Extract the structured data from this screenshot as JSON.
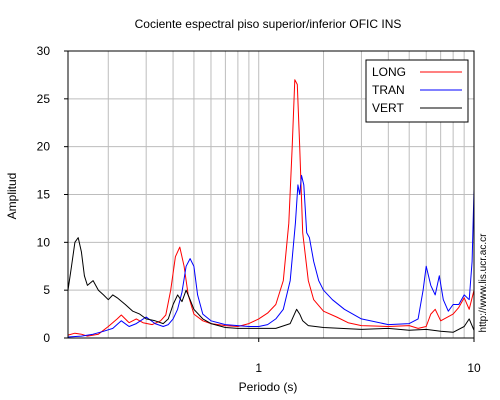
{
  "chart_data": {
    "type": "line",
    "title": "Cociente espectral piso superior/inferior  OFIC INS",
    "xlabel": "Periodo (s)",
    "ylabel": "Amplitud",
    "x_scale": "log",
    "xlim": [
      0.13,
      10
    ],
    "ylim": [
      0,
      30
    ],
    "grid": true,
    "legend_position": "top-right",
    "x_ticks": [
      {
        "value": 1,
        "label": "1"
      },
      {
        "value": 10,
        "label": "10"
      }
    ],
    "y_ticks": [
      {
        "value": 0,
        "label": "0"
      },
      {
        "value": 5,
        "label": "5"
      },
      {
        "value": 10,
        "label": "10"
      },
      {
        "value": 15,
        "label": "15"
      },
      {
        "value": 20,
        "label": "20"
      },
      {
        "value": 25,
        "label": "25"
      },
      {
        "value": 30,
        "label": "30"
      }
    ],
    "series": [
      {
        "name": "LONG",
        "color": "#ff0000",
        "points": [
          [
            0.13,
            0.3
          ],
          [
            0.14,
            0.5
          ],
          [
            0.15,
            0.4
          ],
          [
            0.16,
            0.2
          ],
          [
            0.18,
            0.4
          ],
          [
            0.2,
            1.2
          ],
          [
            0.22,
            2.0
          ],
          [
            0.23,
            2.4
          ],
          [
            0.25,
            1.6
          ],
          [
            0.27,
            2.0
          ],
          [
            0.29,
            1.6
          ],
          [
            0.32,
            1.4
          ],
          [
            0.35,
            1.8
          ],
          [
            0.37,
            2.4
          ],
          [
            0.39,
            5.0
          ],
          [
            0.41,
            8.5
          ],
          [
            0.43,
            9.5
          ],
          [
            0.45,
            7.5
          ],
          [
            0.47,
            4.5
          ],
          [
            0.5,
            2.5
          ],
          [
            0.55,
            1.8
          ],
          [
            0.6,
            1.5
          ],
          [
            0.7,
            1.3
          ],
          [
            0.8,
            1.2
          ],
          [
            0.9,
            1.5
          ],
          [
            1.0,
            2.0
          ],
          [
            1.1,
            2.6
          ],
          [
            1.2,
            3.5
          ],
          [
            1.3,
            6.0
          ],
          [
            1.38,
            12.0
          ],
          [
            1.43,
            20.0
          ],
          [
            1.47,
            27.0
          ],
          [
            1.51,
            26.5
          ],
          [
            1.55,
            20.0
          ],
          [
            1.6,
            11.0
          ],
          [
            1.7,
            6.0
          ],
          [
            1.8,
            4.0
          ],
          [
            2.0,
            2.8
          ],
          [
            2.3,
            2.2
          ],
          [
            2.6,
            1.6
          ],
          [
            3.0,
            1.3
          ],
          [
            4.0,
            1.2
          ],
          [
            5.0,
            1.3
          ],
          [
            5.5,
            1.0
          ],
          [
            6.0,
            1.2
          ],
          [
            6.3,
            2.5
          ],
          [
            6.6,
            3.0
          ],
          [
            7.0,
            1.8
          ],
          [
            8.0,
            2.5
          ],
          [
            8.5,
            3.2
          ],
          [
            9.0,
            4.2
          ],
          [
            9.5,
            3.0
          ],
          [
            10.0,
            5.0
          ]
        ]
      },
      {
        "name": "TRAN",
        "color": "#0000ff",
        "points": [
          [
            0.13,
            0.1
          ],
          [
            0.15,
            0.2
          ],
          [
            0.17,
            0.4
          ],
          [
            0.19,
            0.7
          ],
          [
            0.21,
            1.0
          ],
          [
            0.23,
            1.8
          ],
          [
            0.25,
            1.2
          ],
          [
            0.27,
            1.5
          ],
          [
            0.3,
            2.2
          ],
          [
            0.33,
            1.5
          ],
          [
            0.36,
            1.2
          ],
          [
            0.38,
            1.4
          ],
          [
            0.4,
            2.0
          ],
          [
            0.42,
            3.0
          ],
          [
            0.44,
            4.8
          ],
          [
            0.46,
            7.5
          ],
          [
            0.48,
            8.3
          ],
          [
            0.5,
            7.5
          ],
          [
            0.52,
            4.5
          ],
          [
            0.55,
            2.5
          ],
          [
            0.6,
            1.8
          ],
          [
            0.7,
            1.4
          ],
          [
            0.8,
            1.3
          ],
          [
            0.9,
            1.2
          ],
          [
            1.0,
            1.2
          ],
          [
            1.1,
            1.4
          ],
          [
            1.2,
            2.0
          ],
          [
            1.3,
            3.0
          ],
          [
            1.4,
            6.0
          ],
          [
            1.48,
            12.0
          ],
          [
            1.52,
            16.0
          ],
          [
            1.55,
            15.0
          ],
          [
            1.58,
            17.0
          ],
          [
            1.62,
            16.0
          ],
          [
            1.67,
            11.0
          ],
          [
            1.72,
            10.5
          ],
          [
            1.8,
            8.0
          ],
          [
            1.9,
            6.0
          ],
          [
            2.0,
            5.0
          ],
          [
            2.2,
            4.0
          ],
          [
            2.5,
            3.0
          ],
          [
            3.0,
            2.0
          ],
          [
            4.0,
            1.4
          ],
          [
            5.0,
            1.5
          ],
          [
            5.5,
            2.0
          ],
          [
            5.8,
            5.0
          ],
          [
            6.0,
            7.5
          ],
          [
            6.3,
            5.5
          ],
          [
            6.6,
            4.5
          ],
          [
            6.9,
            6.5
          ],
          [
            7.2,
            4.0
          ],
          [
            7.6,
            2.8
          ],
          [
            8.0,
            3.5
          ],
          [
            8.5,
            3.5
          ],
          [
            9.0,
            4.5
          ],
          [
            9.5,
            4.0
          ],
          [
            9.8,
            8.0
          ],
          [
            10.0,
            15.5
          ]
        ]
      },
      {
        "name": "VERT",
        "color": "#000000",
        "points": [
          [
            0.13,
            5.0
          ],
          [
            0.135,
            7.5
          ],
          [
            0.14,
            10.0
          ],
          [
            0.145,
            10.5
          ],
          [
            0.15,
            9.0
          ],
          [
            0.155,
            6.5
          ],
          [
            0.16,
            5.5
          ],
          [
            0.17,
            6.0
          ],
          [
            0.18,
            5.0
          ],
          [
            0.19,
            4.5
          ],
          [
            0.2,
            4.0
          ],
          [
            0.21,
            4.5
          ],
          [
            0.22,
            4.2
          ],
          [
            0.24,
            3.5
          ],
          [
            0.26,
            2.8
          ],
          [
            0.28,
            2.5
          ],
          [
            0.3,
            2.0
          ],
          [
            0.33,
            1.8
          ],
          [
            0.36,
            1.5
          ],
          [
            0.38,
            2.0
          ],
          [
            0.4,
            3.5
          ],
          [
            0.42,
            4.5
          ],
          [
            0.44,
            3.8
          ],
          [
            0.46,
            5.0
          ],
          [
            0.48,
            4.0
          ],
          [
            0.5,
            3.0
          ],
          [
            0.55,
            2.0
          ],
          [
            0.6,
            1.5
          ],
          [
            0.7,
            1.1
          ],
          [
            0.8,
            1.0
          ],
          [
            0.9,
            1.0
          ],
          [
            1.0,
            1.0
          ],
          [
            1.2,
            1.0
          ],
          [
            1.4,
            1.5
          ],
          [
            1.5,
            3.0
          ],
          [
            1.55,
            2.5
          ],
          [
            1.6,
            1.8
          ],
          [
            1.7,
            1.3
          ],
          [
            2.0,
            1.1
          ],
          [
            3.0,
            0.9
          ],
          [
            4.0,
            1.0
          ],
          [
            5.0,
            0.8
          ],
          [
            6.0,
            0.9
          ],
          [
            7.0,
            0.7
          ],
          [
            8.0,
            0.6
          ],
          [
            9.0,
            1.2
          ],
          [
            9.5,
            2.0
          ],
          [
            10.0,
            0.8
          ]
        ]
      }
    ]
  },
  "watermark": "http://www.lis.ucr.ac.cr"
}
